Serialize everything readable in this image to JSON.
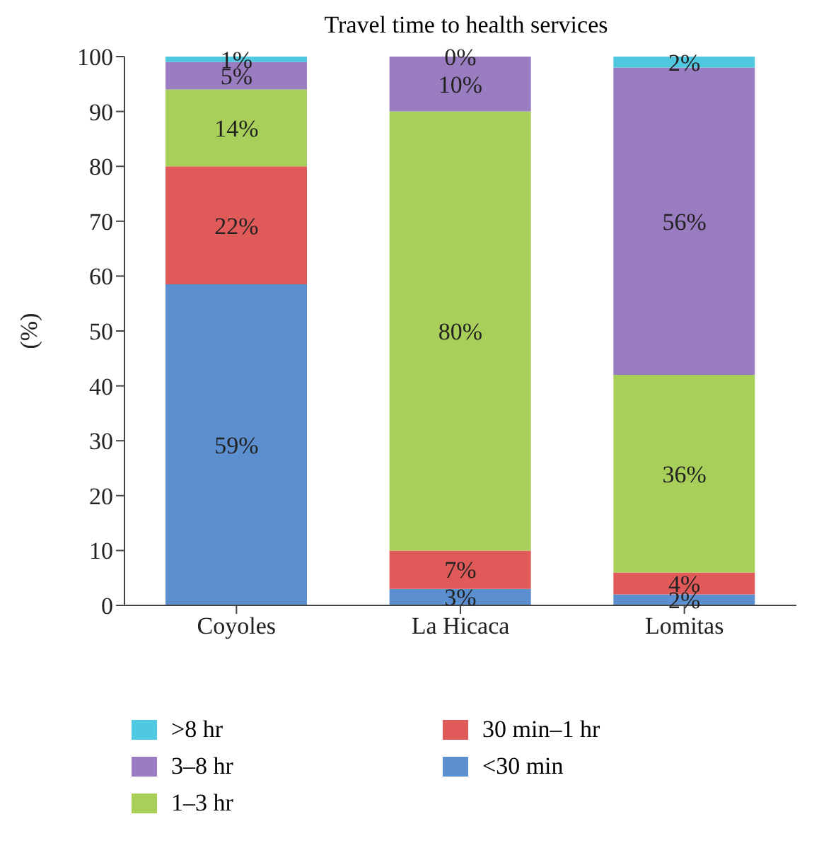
{
  "chart_data": {
    "type": "bar",
    "stacked": true,
    "title": "Travel time to health services",
    "ylabel": "(%)",
    "categories": [
      "Coyoles",
      "La Hicaca",
      "Lomitas"
    ],
    "ylim": [
      0,
      100
    ],
    "yticks": [
      0,
      10,
      20,
      30,
      40,
      50,
      60,
      70,
      80,
      90,
      100
    ],
    "legend": "bottom",
    "series": [
      {
        "name": "<30 min",
        "color": "#5b8fd0",
        "values": [
          58.5,
          3,
          2
        ],
        "value_labels": [
          "59%",
          "3%",
          "2%"
        ]
      },
      {
        "name": "30 min–1 hr",
        "color": "#e05a5a",
        "values": [
          21.5,
          7,
          4
        ],
        "value_labels": [
          "22%",
          "7%",
          "4%"
        ]
      },
      {
        "name": "1–3 hr",
        "color": "#a8cf5a",
        "values": [
          14,
          80,
          36
        ],
        "value_labels": [
          "14%",
          "80%",
          "36%"
        ]
      },
      {
        "name": "3–8 hr",
        "color": "#9a7cc0",
        "values": [
          5,
          10,
          56
        ],
        "value_labels": [
          "5%",
          "10%",
          "56%"
        ]
      },
      {
        "name": ">8 hr",
        "color": "#4fc8e0",
        "values": [
          1,
          0,
          2
        ],
        "value_labels": [
          "1%",
          "0%",
          "2%"
        ]
      }
    ]
  }
}
